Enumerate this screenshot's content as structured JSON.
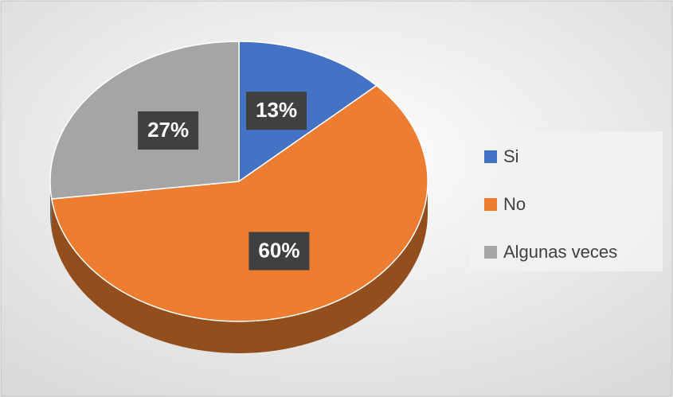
{
  "chart_data": {
    "type": "pie",
    "categories": [
      "Si",
      "No",
      "Algunas veces"
    ],
    "values": [
      13,
      60,
      27
    ],
    "value_labels": [
      "13%",
      "60%",
      "27%"
    ],
    "colors": [
      "#4472c4",
      "#ed7d31",
      "#a5a5a5"
    ],
    "legend": "right"
  }
}
